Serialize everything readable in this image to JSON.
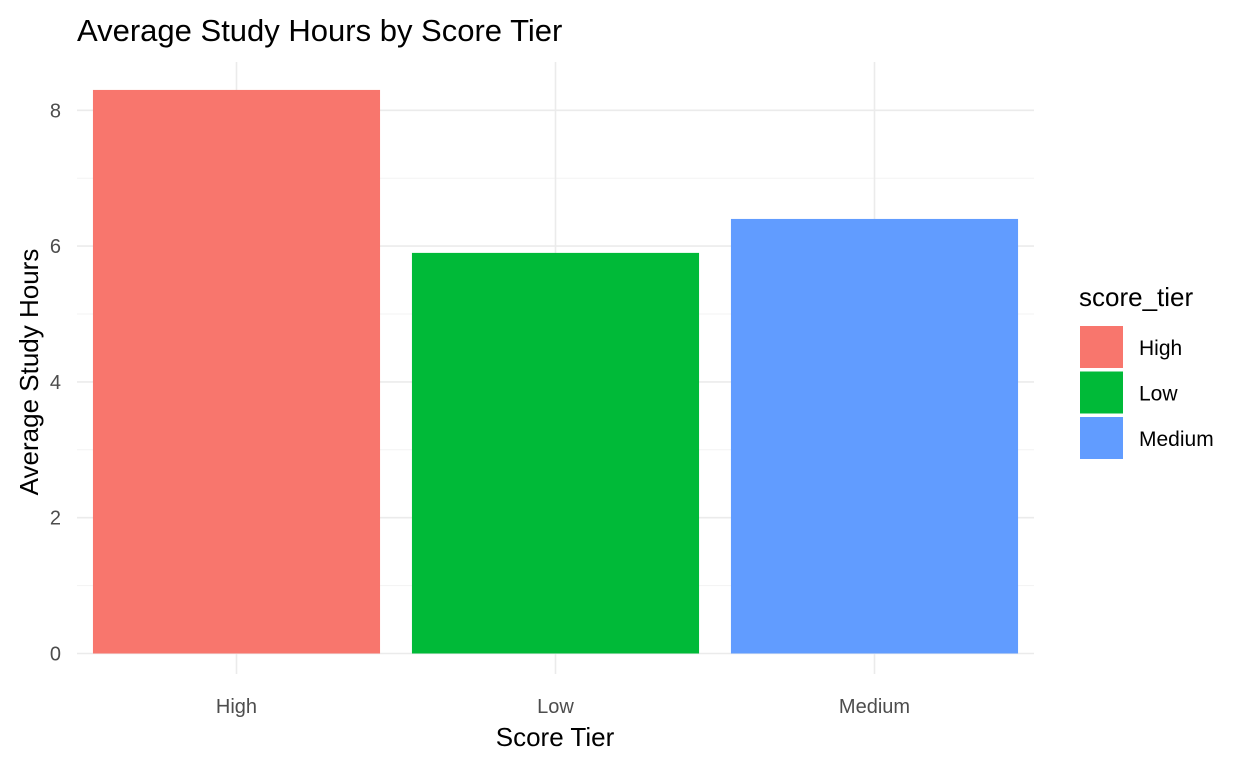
{
  "chart_data": {
    "type": "bar",
    "title": "Average Study Hours by Score Tier",
    "xlabel": "Score Tier",
    "ylabel": "Average Study Hours",
    "categories": [
      "High",
      "Low",
      "Medium"
    ],
    "values": [
      8.3,
      5.9,
      6.4
    ],
    "colors": [
      "#f8766d",
      "#00ba38",
      "#619cff"
    ],
    "ylim": [
      0,
      8.8
    ],
    "yticks": [
      0,
      2,
      4,
      6,
      8
    ],
    "grid": true,
    "legend": {
      "title": "score_tier",
      "position": "right",
      "entries": [
        "High",
        "Low",
        "Medium"
      ]
    }
  }
}
